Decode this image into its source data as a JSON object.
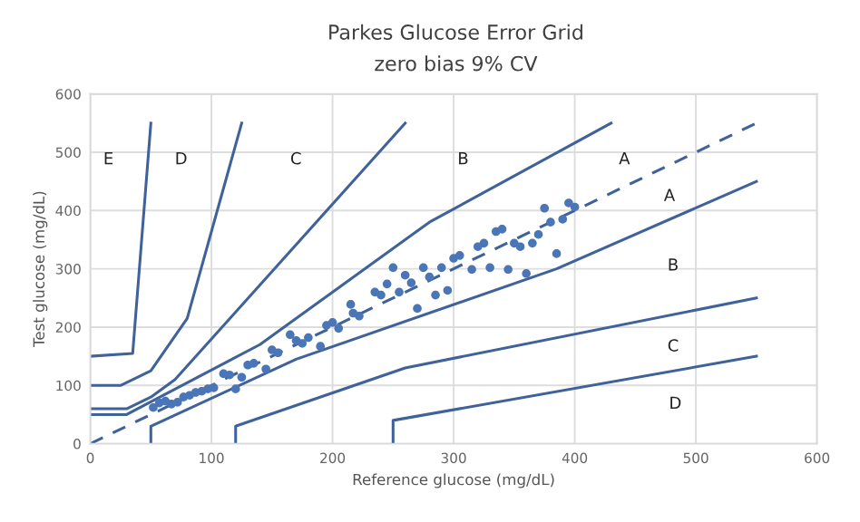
{
  "chart_data": {
    "type": "scatter",
    "title": "Parkes Glucose Error Grid",
    "subtitle": "zero bias 9% CV",
    "xlabel": "Reference glucose (mg/dL)",
    "ylabel": "Test glucose (mg/dL)",
    "xlim": [
      0,
      600
    ],
    "ylim": [
      0,
      600
    ],
    "xticks": [
      0,
      100,
      200,
      300,
      400,
      500,
      600
    ],
    "yticks": [
      0,
      100,
      200,
      300,
      400,
      500,
      600
    ],
    "grid": true,
    "legend": false,
    "series": [
      {
        "type": "line",
        "color": "#3f629b",
        "line_style": "solid",
        "x": [
          0,
          30,
          140,
          280,
          430
        ],
        "values": [
          50,
          50,
          170,
          380,
          550
        ]
      },
      {
        "type": "line",
        "color": "#3f629b",
        "line_style": "solid",
        "x": [
          50,
          50,
          170,
          385,
          550
        ],
        "values": [
          0,
          30,
          145,
          300,
          450
        ]
      },
      {
        "type": "line",
        "color": "#3f629b",
        "line_style": "solid",
        "x": [
          0,
          30,
          50,
          70,
          260
        ],
        "values": [
          60,
          60,
          80,
          110,
          550
        ]
      },
      {
        "type": "line",
        "color": "#3f629b",
        "line_style": "solid",
        "x": [
          120,
          120,
          260,
          550
        ],
        "values": [
          0,
          30,
          130,
          250
        ]
      },
      {
        "type": "line",
        "color": "#3f629b",
        "line_style": "solid",
        "x": [
          0,
          25,
          50,
          80,
          125
        ],
        "values": [
          100,
          100,
          125,
          215,
          550
        ]
      },
      {
        "type": "line",
        "color": "#3f629b",
        "line_style": "solid",
        "x": [
          250,
          250,
          550
        ],
        "values": [
          0,
          40,
          150
        ]
      },
      {
        "type": "line",
        "color": "#3f629b",
        "line_style": "solid",
        "x": [
          0,
          35,
          50
        ],
        "values": [
          150,
          155,
          550
        ]
      },
      {
        "type": "line",
        "color": "#3f629b",
        "line_style": "dashed",
        "x": [
          0,
          550
        ],
        "values": [
          0,
          550
        ]
      },
      {
        "color": "#4a76b8",
        "marker": "circle",
        "x": [
          52,
          57,
          62,
          67,
          72,
          77,
          82,
          87,
          92,
          97,
          102,
          110,
          115,
          120,
          125,
          130,
          135,
          145,
          150,
          155,
          165,
          170,
          175,
          180,
          190,
          195,
          200,
          205,
          215,
          217,
          222,
          235,
          240,
          245,
          250,
          255,
          260,
          265,
          270,
          275,
          280,
          285,
          290,
          295,
          300,
          305,
          315,
          320,
          325,
          330,
          335,
          340,
          345,
          350,
          355,
          360,
          365,
          370,
          375,
          380,
          385,
          390,
          395,
          400
        ],
        "values": [
          62,
          70,
          73,
          68,
          71,
          80,
          83,
          88,
          90,
          94,
          96,
          120,
          118,
          94,
          114,
          135,
          138,
          128,
          161,
          156,
          187,
          177,
          172,
          182,
          167,
          203,
          208,
          198,
          239,
          224,
          219,
          260,
          255,
          274,
          302,
          260,
          289,
          276,
          232,
          302,
          286,
          255,
          302,
          263,
          318,
          323,
          299,
          338,
          344,
          302,
          364,
          368,
          299,
          344,
          338,
          292,
          344,
          359,
          404,
          380,
          326,
          385,
          413,
          406
        ]
      }
    ],
    "annotations": [
      "E",
      "D",
      "C",
      "B",
      "A",
      "A",
      "B",
      "C",
      "D"
    ]
  }
}
